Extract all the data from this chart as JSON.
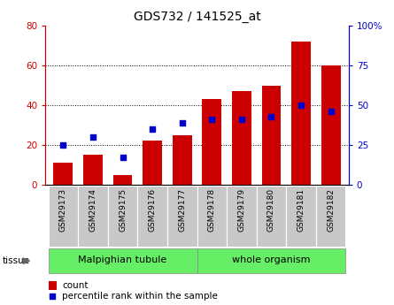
{
  "title": "GDS732 / 141525_at",
  "samples": [
    "GSM29173",
    "GSM29174",
    "GSM29175",
    "GSM29176",
    "GSM29177",
    "GSM29178",
    "GSM29179",
    "GSM29180",
    "GSM29181",
    "GSM29182"
  ],
  "counts": [
    11,
    15,
    5,
    22,
    25,
    43,
    47,
    50,
    72,
    60
  ],
  "percentiles": [
    25,
    30,
    17,
    35,
    39,
    41,
    41,
    43,
    50,
    46
  ],
  "tissue_labels": [
    "Malpighian tubule",
    "whole organism"
  ],
  "ylim_left": [
    0,
    80
  ],
  "ylim_right": [
    0,
    100
  ],
  "yticks_left": [
    0,
    20,
    40,
    60,
    80
  ],
  "ytick_labels_left": [
    "0",
    "20",
    "40",
    "60",
    "80"
  ],
  "yticks_right": [
    0,
    25,
    50,
    75,
    100
  ],
  "ytick_labels_right": [
    "0",
    "25",
    "50",
    "75",
    "100%"
  ],
  "bar_color": "#cc0000",
  "dot_color": "#0000cc",
  "bg_color_plot": "#ffffff",
  "tick_label_bg": "#c8c8c8",
  "tissue_bg_color": "#66ee66",
  "legend_count_label": "count",
  "legend_pct_label": "percentile rank within the sample",
  "title_fontsize": 10,
  "axis_fontsize": 7.5,
  "tick_fontsize": 6.5,
  "legend_fontsize": 7.5
}
